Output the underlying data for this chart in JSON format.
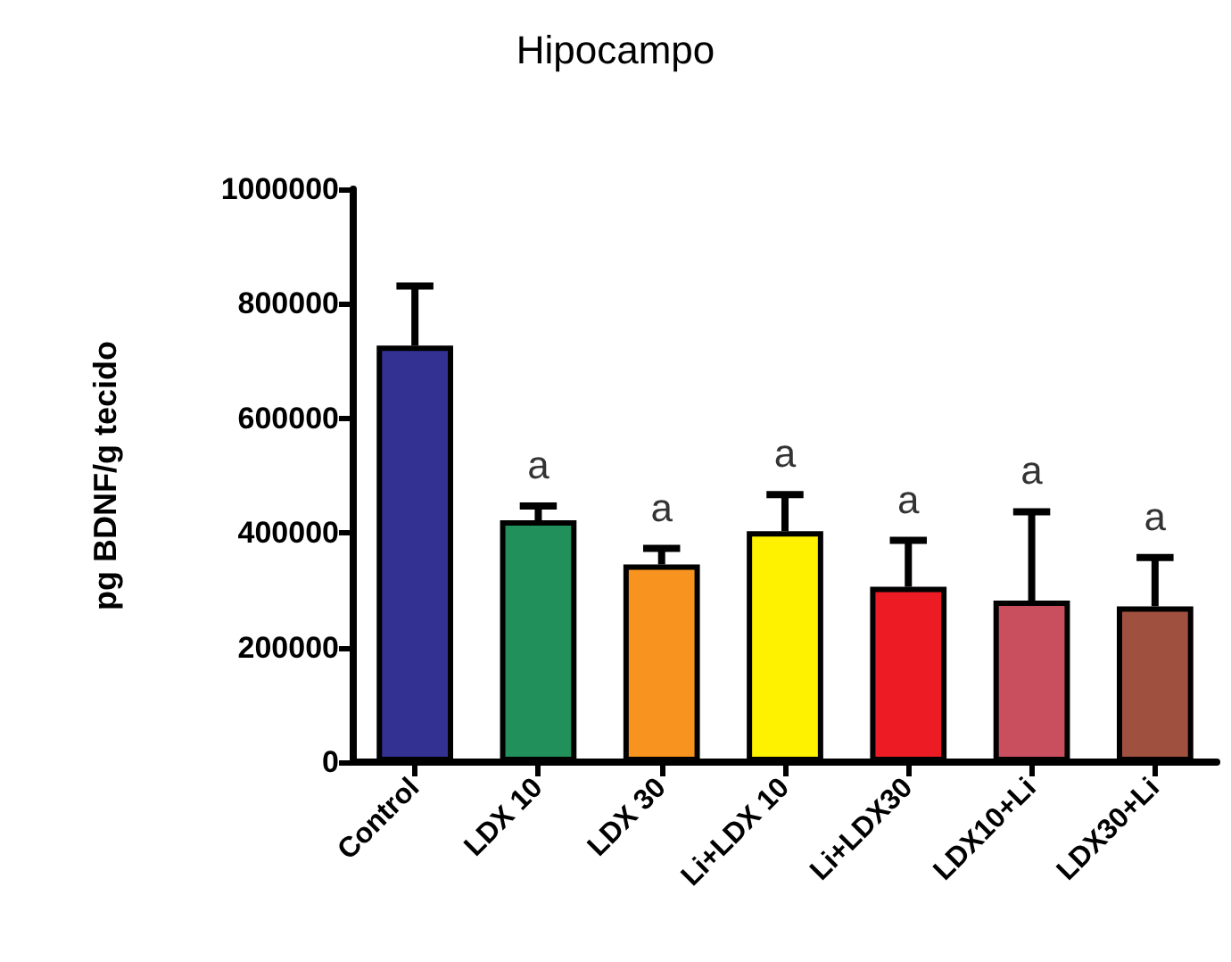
{
  "chart_data": {
    "type": "bar",
    "title": "Hipocampo",
    "ylabel": "pg BDNF/g tecido",
    "categories": [
      "Control",
      "LDX 10",
      "LDX 30",
      "Li+LDX 10",
      "Li+LDX30",
      "LDX10+Li",
      "LDX30+Li"
    ],
    "values": [
      727000,
      422000,
      345000,
      403000,
      306000,
      282000,
      272000
    ],
    "colors": [
      "#333192",
      "#21905a",
      "#f7931e",
      "#fff200",
      "#ed1c24",
      "#c94f5f",
      "#a0503e"
    ],
    "errors": [
      [
        727000,
        831000
      ],
      [
        422000,
        447000
      ],
      [
        345000,
        373000
      ],
      [
        403000,
        467000
      ],
      [
        306000,
        387000
      ],
      [
        282000,
        437000
      ],
      [
        272000,
        357000
      ]
    ],
    "annotations": [
      {
        "text": "a",
        "x": "LDX 10",
        "y": 447000
      },
      {
        "text": "a",
        "x": "LDX 30",
        "y": 373000
      },
      {
        "text": "a",
        "x": "Li+LDX 10",
        "y": 467000
      },
      {
        "text": "a",
        "x": "Li+LDX30",
        "y": 387000
      },
      {
        "text": "a",
        "x": "LDX10+Li",
        "y": 437000
      },
      {
        "text": "a",
        "x": "LDX30+Li",
        "y": 357000
      }
    ],
    "ylim": [
      0,
      1000000
    ],
    "yticks": [
      0,
      200000,
      400000,
      600000,
      800000,
      1000000
    ],
    "grid": false
  }
}
